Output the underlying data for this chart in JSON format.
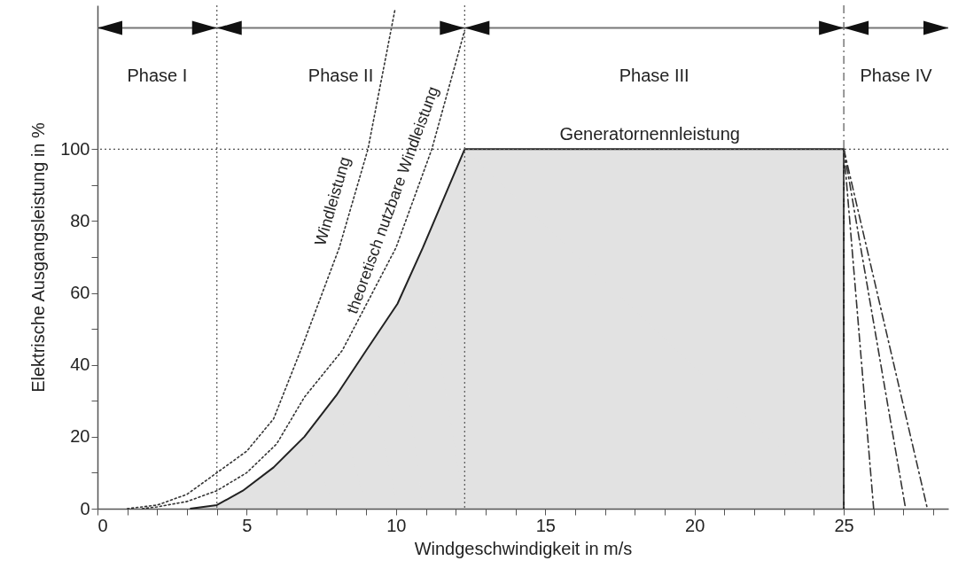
{
  "chart_data": {
    "type": "line",
    "xlabel": "Windgeschwindigkeit in m/s",
    "ylabel": "Elektrische Ausgangsleistung in %",
    "xlim": [
      0,
      28.5
    ],
    "ylim": [
      0,
      140
    ],
    "xticks": [
      0,
      {
        "value": 1,
        "label": null
      },
      {
        "value": 2,
        "label": null
      },
      {
        "value": 3,
        "label": null
      },
      {
        "value": 4,
        "label": null
      },
      5,
      {
        "value": 6,
        "label": null
      },
      {
        "value": 7,
        "label": null
      },
      {
        "value": 8,
        "label": null
      },
      {
        "value": 9,
        "label": null
      },
      10,
      {
        "value": 11,
        "label": null
      },
      {
        "value": 12,
        "label": null
      },
      {
        "value": 13,
        "label": null
      },
      {
        "value": 14,
        "label": null
      },
      15,
      {
        "value": 16,
        "label": null
      },
      {
        "value": 17,
        "label": null
      },
      {
        "value": 18,
        "label": null
      },
      {
        "value": 19,
        "label": null
      },
      20,
      {
        "value": 21,
        "label": null
      },
      {
        "value": 22,
        "label": null
      },
      {
        "value": 23,
        "label": null
      },
      {
        "value": 24,
        "label": null
      },
      25,
      {
        "value": 26,
        "label": null
      },
      {
        "value": 27,
        "label": null
      },
      {
        "value": 28,
        "label": null
      }
    ],
    "yticks": [
      0,
      {
        "value": 10,
        "label": null
      },
      20,
      {
        "value": 30,
        "label": null
      },
      40,
      {
        "value": 50,
        "label": null
      },
      60,
      {
        "value": 70,
        "label": null
      },
      80,
      {
        "value": 90,
        "label": null
      },
      100
    ],
    "series": [
      {
        "type": "area",
        "color": "#222222",
        "line_style": "solid",
        "x": [
          3.1,
          4,
          4.87,
          5.9,
          6.93,
          8,
          9,
          10.05,
          10.9,
          12.3,
          25,
          25
        ],
        "values": [
          0,
          1,
          5,
          11.5,
          20,
          31.5,
          44,
          57,
          72.6,
          100,
          100,
          0
        ]
      },
      {
        "name": "Windleistung",
        "color": "#333333",
        "line_style": "dotted",
        "x": [
          1,
          2,
          3,
          4,
          5,
          5.9,
          6.9,
          8.1,
          9.06,
          9.97
        ],
        "values": [
          0,
          1,
          4,
          10,
          16,
          25,
          46,
          72.6,
          100,
          139
        ]
      },
      {
        "name": "theoretisch nutzbare Windleistung",
        "color": "#333333",
        "line_style": "dotted",
        "x": [
          1.5,
          2,
          3,
          4,
          5,
          6,
          6.93,
          8.2,
          10,
          11.2,
          12.3
        ],
        "values": [
          0,
          0.5,
          2,
          5,
          10,
          18,
          31,
          44,
          72.6,
          100,
          133
        ]
      },
      {
        "color": "#333333",
        "line_style": "dashed",
        "x": [
          25,
          26
        ],
        "values": [
          100,
          0
        ]
      },
      {
        "color": "#333333",
        "line_style": "dashed",
        "x": [
          25,
          27.07
        ],
        "values": [
          100,
          0
        ]
      },
      {
        "color": "#333333",
        "line_style": "dashed",
        "x": [
          25,
          27.8
        ],
        "values": [
          100,
          0
        ]
      }
    ],
    "ref_lines": [
      {
        "axis": "y",
        "value": 100,
        "line_style": "dotted",
        "color": "#555555"
      },
      {
        "axis": "x",
        "value": 4,
        "line_style": "dotted",
        "color": "#555555"
      },
      {
        "axis": "x",
        "value": 12.3,
        "line_style": "dotted",
        "color": "#555555"
      },
      {
        "axis": "x",
        "value": 25,
        "line_style": "dashed",
        "color": "#555555"
      }
    ],
    "annotations": [
      {
        "text": "Generatornennleistung",
        "x": 18.5,
        "y": 100
      },
      "Phase I",
      "Phase II",
      "Phase III",
      "Phase IV"
    ]
  }
}
